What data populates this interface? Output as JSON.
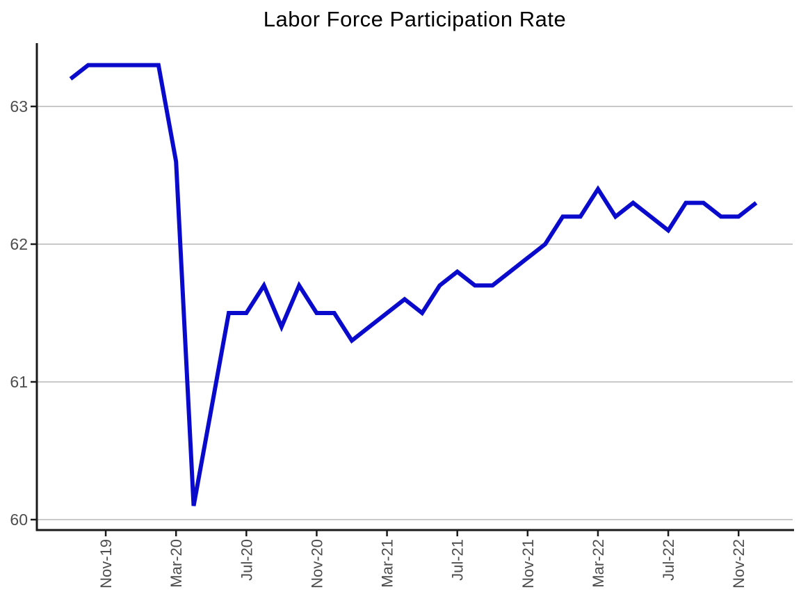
{
  "chart_data": {
    "type": "line",
    "title": "Labor Force Participation Rate",
    "x": [
      "Sep-19",
      "Oct-19",
      "Nov-19",
      "Dec-19",
      "Jan-20",
      "Feb-20",
      "Mar-20",
      "Apr-20",
      "May-20",
      "Jun-20",
      "Jul-20",
      "Aug-20",
      "Sep-20",
      "Oct-20",
      "Nov-20",
      "Dec-20",
      "Jan-21",
      "Feb-21",
      "Mar-21",
      "Apr-21",
      "May-21",
      "Jun-21",
      "Jul-21",
      "Aug-21",
      "Sep-21",
      "Oct-21",
      "Nov-21",
      "Dec-21",
      "Jan-22",
      "Feb-22",
      "Mar-22",
      "Apr-22",
      "May-22",
      "Jun-22",
      "Jul-22",
      "Aug-22",
      "Sep-22",
      "Oct-22",
      "Nov-22",
      "Dec-22"
    ],
    "series": [
      {
        "name": "Labor Force Participation Rate",
        "values": [
          63.2,
          63.3,
          63.3,
          63.3,
          63.3,
          63.3,
          62.6,
          60.1,
          60.8,
          61.5,
          61.5,
          61.7,
          61.4,
          61.7,
          61.5,
          61.5,
          61.3,
          61.4,
          61.5,
          61.6,
          61.5,
          61.7,
          61.8,
          61.7,
          61.7,
          61.8,
          61.9,
          62.0,
          62.2,
          62.2,
          62.4,
          62.2,
          62.3,
          62.2,
          62.1,
          62.3,
          62.3,
          62.2,
          62.2,
          62.3
        ]
      }
    ],
    "x_tick_labels": [
      "Nov-19",
      "Mar-20",
      "Jul-20",
      "Nov-20",
      "Mar-21",
      "Jul-21",
      "Nov-21",
      "Mar-22",
      "Jul-22",
      "Nov-22"
    ],
    "y_ticks": [
      "60",
      "61",
      "62",
      "63"
    ],
    "y_tick_values": [
      60,
      61,
      62,
      63
    ],
    "ylim": [
      59.9,
      63.46
    ],
    "xlabel": "",
    "ylabel": "",
    "grid": "horizontal",
    "legend": "none",
    "colors": {
      "line": "#0a0acd",
      "gridline": "#c9c9c9",
      "axis": "#1a1a1a",
      "tick_label": "#4d4d4d",
      "title": "#000000",
      "background": "#ffffff"
    }
  }
}
